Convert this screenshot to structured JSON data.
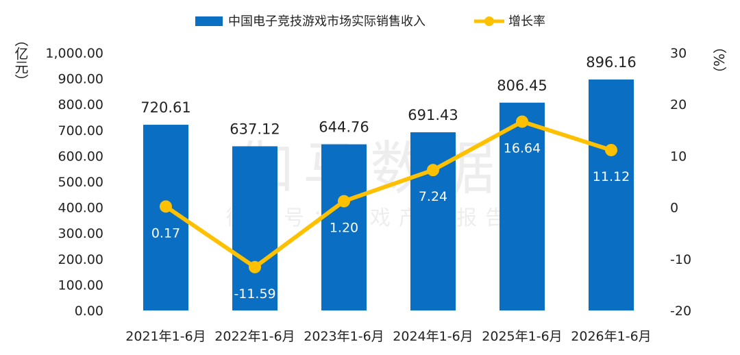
{
  "legend": {
    "bar_label": "中国电子竞技游戏市场实际销售收入",
    "line_label": "增长率"
  },
  "units": {
    "left": "（亿元）",
    "right": "（%）"
  },
  "watermark": {
    "main": "伽马数据",
    "sub": "微信号：游戏产业报告"
  },
  "colors": {
    "bar": "#0a6fc2",
    "line": "#ffc000",
    "marker": "#ffc000"
  },
  "chart_data": {
    "type": "bar",
    "categories": [
      "2021年1-6月",
      "2022年1-6月",
      "2023年1-6月",
      "2024年1-6月",
      "2025年1-6月",
      "2026年1-6月"
    ],
    "series": [
      {
        "name": "中国电子竞技游戏市场实际销售收入",
        "type": "bar",
        "axis": "left",
        "values": [
          720.61,
          637.12,
          644.76,
          691.43,
          806.45,
          896.16
        ],
        "labels": [
          "720.61",
          "637.12",
          "644.76",
          "691.43",
          "806.45",
          "896.16"
        ]
      },
      {
        "name": "增长率",
        "type": "line",
        "axis": "right",
        "values": [
          0.17,
          -11.59,
          1.2,
          7.24,
          16.64,
          11.12
        ],
        "labels": [
          "0.17",
          "-11.59",
          "1.20",
          "7.24",
          "16.64",
          "11.12"
        ]
      }
    ],
    "y_left": {
      "min": 0,
      "max": 1000,
      "ticks": [
        0,
        100,
        200,
        300,
        400,
        500,
        600,
        700,
        800,
        900,
        1000
      ],
      "tick_labels": [
        "0.00",
        "100.00",
        "200.00",
        "300.00",
        "400.00",
        "500.00",
        "600.00",
        "700.00",
        "800.00",
        "900.00",
        "1,000.00"
      ]
    },
    "y_right": {
      "min": -20,
      "max": 30,
      "ticks": [
        -20,
        -10,
        0,
        10,
        20,
        30
      ],
      "tick_labels": [
        "-20",
        "-10",
        "0",
        "10",
        "20",
        "30"
      ]
    },
    "grid": false,
    "legend_position": "top-center"
  }
}
